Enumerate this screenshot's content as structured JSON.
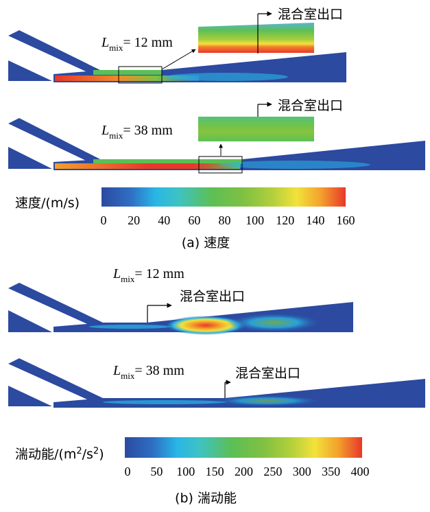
{
  "panel_a": {
    "case1": {
      "l_symbol": "L",
      "l_subscript": "mix",
      "l_value": "= 12 mm",
      "outlet_label": "混合室出口"
    },
    "case2": {
      "l_symbol": "L",
      "l_subscript": "mix",
      "l_value": "= 38 mm",
      "outlet_label": "混合室出口"
    },
    "colorbar": {
      "label": "速度/(m/s)",
      "ticks": [
        "0",
        "20",
        "40",
        "60",
        "80",
        "100",
        "120",
        "140",
        "160"
      ]
    },
    "caption": "(a) 速度"
  },
  "panel_b": {
    "case1": {
      "l_symbol": "L",
      "l_subscript": "mix",
      "l_value": "= 12 mm",
      "outlet_label": "混合室出口"
    },
    "case2": {
      "l_symbol": "L",
      "l_subscript": "mix",
      "l_value": "= 38 mm",
      "outlet_label": "混合室出口"
    },
    "colorbar": {
      "label_prefix": "湍动能/(m",
      "label_sup1": "2",
      "label_mid": "/s",
      "label_sup2": "2",
      "label_suffix": ")",
      "ticks": [
        "0",
        "50",
        "100",
        "150",
        "200",
        "250",
        "300",
        "350",
        "400"
      ]
    },
    "caption": "(b) 湍动能"
  },
  "colormap": [
    "#2b4aa0",
    "#2f6fc4",
    "#29b6e6",
    "#3fc3c0",
    "#5cbf55",
    "#7fc043",
    "#b3cf3c",
    "#f2e23a",
    "#f3a02d",
    "#e8382a"
  ]
}
